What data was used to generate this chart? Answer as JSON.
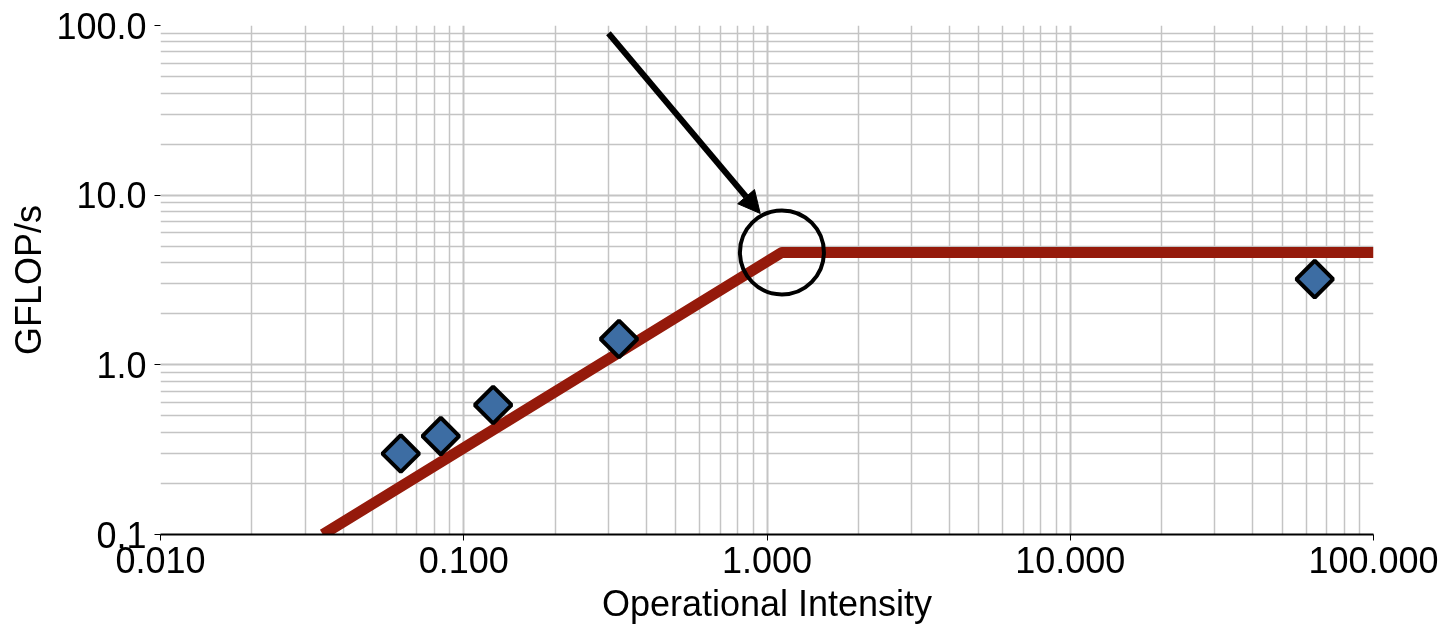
{
  "chart_data": {
    "type": "scatter",
    "xlabel": "Operational Intensity",
    "ylabel": "GFLOP/s",
    "log": "xy",
    "xlim": [
      0.01,
      100
    ],
    "ylim": [
      0.1,
      100
    ],
    "xticks": [
      {
        "value": 0.01,
        "label": "0.010"
      },
      {
        "value": 0.1,
        "label": "0.100"
      },
      {
        "value": 1,
        "label": "1.000"
      },
      {
        "value": 10,
        "label": "10.000"
      },
      {
        "value": 100,
        "label": "100.000"
      }
    ],
    "yticks": [
      {
        "value": 0.1,
        "label": "0.1"
      },
      {
        "value": 1,
        "label": "1.0"
      },
      {
        "value": 10,
        "label": "10.0"
      },
      {
        "value": 100,
        "label": "100.0"
      }
    ],
    "grid": true,
    "series": [
      {
        "type": "line",
        "color": "#951a0b",
        "x": [
          0.0343,
          1.12,
          100
        ],
        "values": [
          0.1,
          4.6,
          4.6
        ]
      },
      {
        "color": "#3d6da3",
        "marker": "diamond",
        "x": [
          0.062,
          0.084,
          0.125,
          0.325,
          64
        ],
        "values": [
          0.3,
          0.38,
          0.58,
          1.42,
          3.2
        ]
      }
    ]
  }
}
